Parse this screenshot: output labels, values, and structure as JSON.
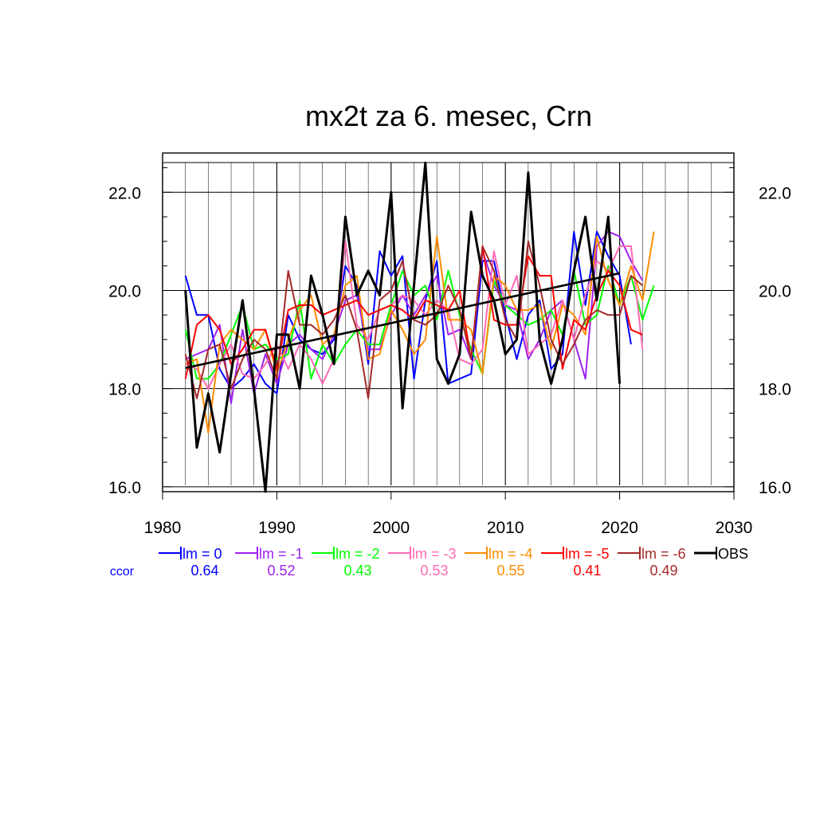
{
  "chart_data": {
    "type": "line",
    "title": "mx2t za 6. mesec, Crn",
    "xlim": [
      1980,
      2030
    ],
    "ylim": [
      15.9,
      22.8
    ],
    "x_ticks": [
      1980,
      1990,
      2000,
      2010,
      2020,
      2030
    ],
    "y_ticks": [
      16.0,
      18.0,
      20.0,
      22.0
    ],
    "x_tick_labels": [
      "1980",
      "1990",
      "2000",
      "2010",
      "2020",
      "2030"
    ],
    "y_tick_labels": [
      "16.0",
      "18.0",
      "20.0",
      "22.0"
    ],
    "grid": "on",
    "legend_placement": "bottom",
    "ccor_label": "ccor",
    "trend": {
      "x": [
        1982,
        2020
      ],
      "y": [
        18.42,
        20.35
      ]
    },
    "series": [
      {
        "name": "lm = 0",
        "color": "#0000ff",
        "ccor": "0.64",
        "start": 1982,
        "values": [
          20.3,
          19.5,
          19.5,
          18.4,
          18.0,
          18.2,
          18.5,
          18.1,
          17.9,
          19.5,
          19.0,
          18.8,
          18.7,
          19.0,
          20.5,
          20.1,
          18.5,
          20.8,
          20.3,
          20.7,
          18.2,
          19.8,
          20.6,
          18.1,
          18.2,
          18.3,
          20.6,
          20.6,
          19.5,
          18.6,
          19.5,
          19.8,
          18.4,
          18.7,
          21.2,
          19.7,
          21.2,
          20.7,
          20.3,
          18.9
        ]
      },
      {
        "name": "lm = -1",
        "color": "#a020f0",
        "ccor": "0.52",
        "start": 1982,
        "values": [
          18.6,
          18.7,
          18.8,
          19.3,
          17.7,
          19.2,
          17.9,
          18.7,
          18.1,
          18.9,
          19.1,
          18.8,
          18.6,
          19.1,
          19.8,
          19.9,
          18.8,
          18.8,
          19.5,
          19.9,
          19.5,
          19.9,
          20.3,
          19.1,
          19.2,
          18.6,
          20.8,
          20.1,
          19.7,
          19.6,
          18.6,
          19.0,
          19.6,
          19.8,
          19.0,
          18.2,
          20.9,
          21.2,
          21.1,
          20.6,
          20.2
        ]
      },
      {
        "name": "lm = -2",
        "color": "#00ff00",
        "ccor": "0.43",
        "start": 1982,
        "values": [
          19.2,
          18.2,
          18.2,
          18.5,
          19.1,
          19.7,
          18.8,
          18.9,
          18.6,
          18.7,
          19.8,
          18.2,
          18.9,
          18.5,
          18.9,
          19.2,
          18.9,
          18.9,
          19.7,
          20.4,
          19.9,
          20.1,
          19.4,
          20.4,
          19.5,
          18.8,
          18.3,
          20.2,
          19.7,
          19.5,
          19.3,
          19.4,
          19.6,
          19.1,
          20.4,
          19.3,
          19.5,
          20.5,
          19.7,
          20.3,
          19.4,
          20.1
        ]
      },
      {
        "name": "lm = -3",
        "color": "#ff69b4",
        "ccor": "0.53",
        "start": 1982,
        "values": [
          18.5,
          18.4,
          18.0,
          18.5,
          18.9,
          18.3,
          18.2,
          18.5,
          18.9,
          18.4,
          18.9,
          18.6,
          18.1,
          18.6,
          21.0,
          19.3,
          19.0,
          19.6,
          19.7,
          19.9,
          19.8,
          19.5,
          19.8,
          19.6,
          18.6,
          18.5,
          18.8,
          20.8,
          19.7,
          20.3,
          18.7,
          18.9,
          19.1,
          19.8,
          19.0,
          19.9,
          20.6,
          20.4,
          20.9,
          20.9,
          18.8
        ]
      },
      {
        "name": "lm = -4",
        "color": "#ff8c00",
        "ccor": "0.55",
        "start": 1982,
        "values": [
          18.5,
          18.6,
          17.1,
          18.9,
          19.2,
          19.0,
          18.8,
          19.2,
          18.3,
          19.0,
          19.6,
          19.9,
          18.9,
          19.1,
          20.1,
          20.3,
          18.6,
          18.7,
          19.6,
          19.2,
          18.7,
          19.0,
          21.1,
          19.4,
          19.4,
          19.2,
          18.3,
          20.3,
          20.1,
          19.6,
          19.6,
          19.7,
          18.8,
          19.7,
          19.5,
          19.1,
          21.1,
          20.2,
          19.7,
          20.5,
          19.8,
          21.2
        ]
      },
      {
        "name": "lm = -5",
        "color": "#ff0000",
        "ccor": "0.41",
        "start": 1982,
        "values": [
          18.2,
          19.3,
          19.5,
          19.2,
          18.5,
          18.8,
          19.2,
          19.2,
          18.4,
          19.6,
          19.7,
          19.7,
          19.5,
          19.6,
          19.7,
          19.8,
          19.5,
          19.6,
          19.7,
          19.6,
          19.4,
          19.8,
          19.7,
          19.6,
          20.0,
          18.6,
          20.9,
          19.4,
          19.3,
          19.3,
          20.7,
          20.3,
          20.3,
          18.4,
          19.4,
          19.2,
          19.9,
          20.4,
          20.1,
          19.2,
          19.1
        ]
      },
      {
        "name": "lm = -6",
        "color": "#a52a2a",
        "ccor": "0.49",
        "start": 1982,
        "values": [
          18.7,
          17.8,
          18.8,
          18.9,
          18.0,
          18.6,
          19.0,
          18.8,
          18.2,
          20.4,
          19.3,
          19.3,
          19.1,
          19.4,
          19.9,
          19.2,
          17.8,
          19.8,
          20.0,
          20.6,
          19.4,
          19.3,
          19.5,
          20.1,
          19.6,
          18.6,
          20.9,
          20.4,
          19.4,
          19.0,
          21.0,
          20.1,
          19.0,
          18.5,
          18.9,
          19.4,
          19.6,
          19.5,
          19.5,
          20.3,
          20.1
        ]
      },
      {
        "name": "OBS",
        "color": "#000000",
        "start": 1982,
        "values": [
          20.0,
          16.8,
          17.9,
          16.7,
          18.3,
          19.8,
          18.0,
          15.9,
          19.1,
          19.1,
          18.0,
          20.3,
          19.5,
          18.5,
          21.5,
          19.9,
          20.4,
          19.9,
          22.0,
          17.6,
          20.1,
          22.6,
          18.6,
          18.1,
          18.7,
          21.6,
          20.3,
          19.8,
          18.7,
          19.0,
          22.4,
          19.0,
          18.1,
          19.0,
          20.4,
          21.5,
          19.8,
          21.5,
          18.1
        ]
      }
    ]
  }
}
